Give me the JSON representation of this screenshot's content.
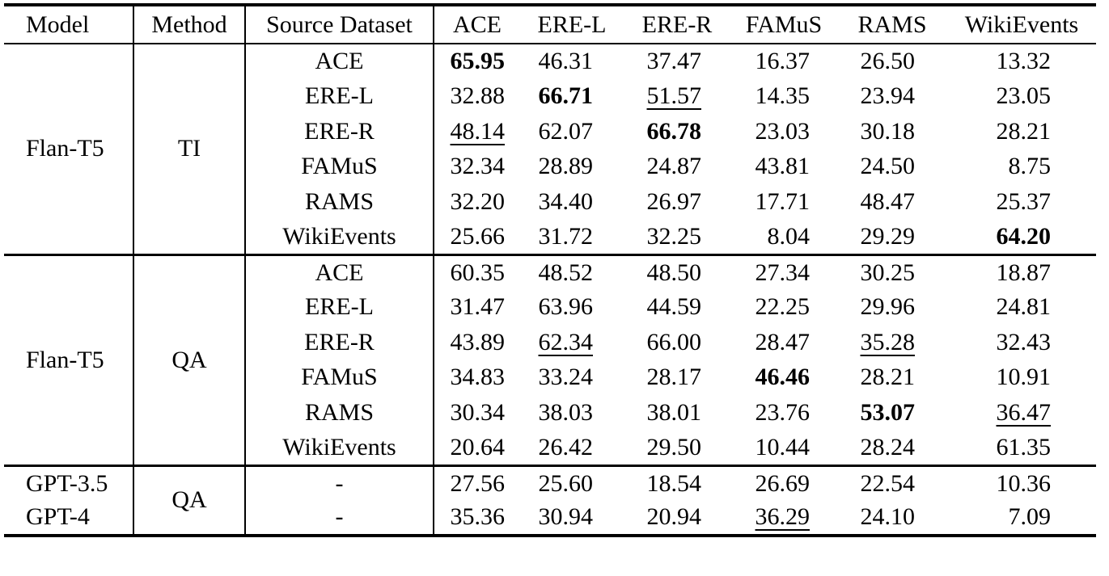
{
  "ink_color": "#000000",
  "background_color": "#ffffff",
  "table": {
    "columns": [
      "Model",
      "Method",
      "Source Dataset",
      "ACE",
      "ERE-L",
      "ERE-R",
      "FAMuS",
      "RAMS",
      "WikiEvents"
    ],
    "groups": [
      {
        "model": "Flan-T5",
        "method": "TI",
        "rows": [
          {
            "source": "ACE",
            "cells": [
              {
                "v": "65.95",
                "b": true
              },
              {
                "v": "46.31"
              },
              {
                "v": "37.47"
              },
              {
                "v": "16.37"
              },
              {
                "v": "26.50"
              },
              {
                "v": "13.32"
              }
            ]
          },
          {
            "source": "ERE-L",
            "cells": [
              {
                "v": "32.88"
              },
              {
                "v": "66.71",
                "b": true
              },
              {
                "v": "51.57",
                "u": true
              },
              {
                "v": "14.35"
              },
              {
                "v": "23.94"
              },
              {
                "v": "23.05"
              }
            ]
          },
          {
            "source": "ERE-R",
            "cells": [
              {
                "v": "48.14",
                "u": true
              },
              {
                "v": "62.07"
              },
              {
                "v": "66.78",
                "b": true
              },
              {
                "v": "23.03"
              },
              {
                "v": "30.18"
              },
              {
                "v": "28.21"
              }
            ]
          },
          {
            "source": "FAMuS",
            "cells": [
              {
                "v": "32.34"
              },
              {
                "v": "28.89"
              },
              {
                "v": "24.87"
              },
              {
                "v": "43.81"
              },
              {
                "v": "24.50"
              },
              {
                "v": "8.75"
              }
            ]
          },
          {
            "source": "RAMS",
            "cells": [
              {
                "v": "32.20"
              },
              {
                "v": "34.40"
              },
              {
                "v": "26.97"
              },
              {
                "v": "17.71"
              },
              {
                "v": "48.47"
              },
              {
                "v": "25.37"
              }
            ]
          },
          {
            "source": "WikiEvents",
            "cells": [
              {
                "v": "25.66"
              },
              {
                "v": "31.72"
              },
              {
                "v": "32.25"
              },
              {
                "v": "8.04"
              },
              {
                "v": "29.29"
              },
              {
                "v": "64.20",
                "b": true
              }
            ]
          }
        ]
      },
      {
        "model": "Flan-T5",
        "method": "QA",
        "rows": [
          {
            "source": "ACE",
            "cells": [
              {
                "v": "60.35"
              },
              {
                "v": "48.52"
              },
              {
                "v": "48.50"
              },
              {
                "v": "27.34"
              },
              {
                "v": "30.25"
              },
              {
                "v": "18.87"
              }
            ]
          },
          {
            "source": "ERE-L",
            "cells": [
              {
                "v": "31.47"
              },
              {
                "v": "63.96"
              },
              {
                "v": "44.59"
              },
              {
                "v": "22.25"
              },
              {
                "v": "29.96"
              },
              {
                "v": "24.81"
              }
            ]
          },
          {
            "source": "ERE-R",
            "cells": [
              {
                "v": "43.89"
              },
              {
                "v": "62.34",
                "u": true
              },
              {
                "v": "66.00"
              },
              {
                "v": "28.47"
              },
              {
                "v": "35.28",
                "u": true
              },
              {
                "v": "32.43"
              }
            ]
          },
          {
            "source": "FAMuS",
            "cells": [
              {
                "v": "34.83"
              },
              {
                "v": "33.24"
              },
              {
                "v": "28.17"
              },
              {
                "v": "46.46",
                "b": true
              },
              {
                "v": "28.21"
              },
              {
                "v": "10.91"
              }
            ]
          },
          {
            "source": "RAMS",
            "cells": [
              {
                "v": "30.34"
              },
              {
                "v": "38.03"
              },
              {
                "v": "38.01"
              },
              {
                "v": "23.76"
              },
              {
                "v": "53.07",
                "b": true
              },
              {
                "v": "36.47",
                "u": true
              }
            ]
          },
          {
            "source": "WikiEvents",
            "cells": [
              {
                "v": "20.64"
              },
              {
                "v": "26.42"
              },
              {
                "v": "29.50"
              },
              {
                "v": "10.44"
              },
              {
                "v": "28.24"
              },
              {
                "v": "61.35"
              }
            ]
          }
        ]
      },
      {
        "method": "QA",
        "rows": [
          {
            "model": "GPT-3.5",
            "source": "-",
            "cells": [
              {
                "v": "27.56"
              },
              {
                "v": "25.60"
              },
              {
                "v": "18.54"
              },
              {
                "v": "26.69"
              },
              {
                "v": "22.54"
              },
              {
                "v": "10.36"
              }
            ]
          },
          {
            "model": "GPT-4",
            "source": "-",
            "cells": [
              {
                "v": "35.36"
              },
              {
                "v": "30.94"
              },
              {
                "v": "20.94"
              },
              {
                "v": "36.29",
                "u": true
              },
              {
                "v": "24.10"
              },
              {
                "v": "7.09"
              }
            ]
          }
        ]
      }
    ]
  }
}
